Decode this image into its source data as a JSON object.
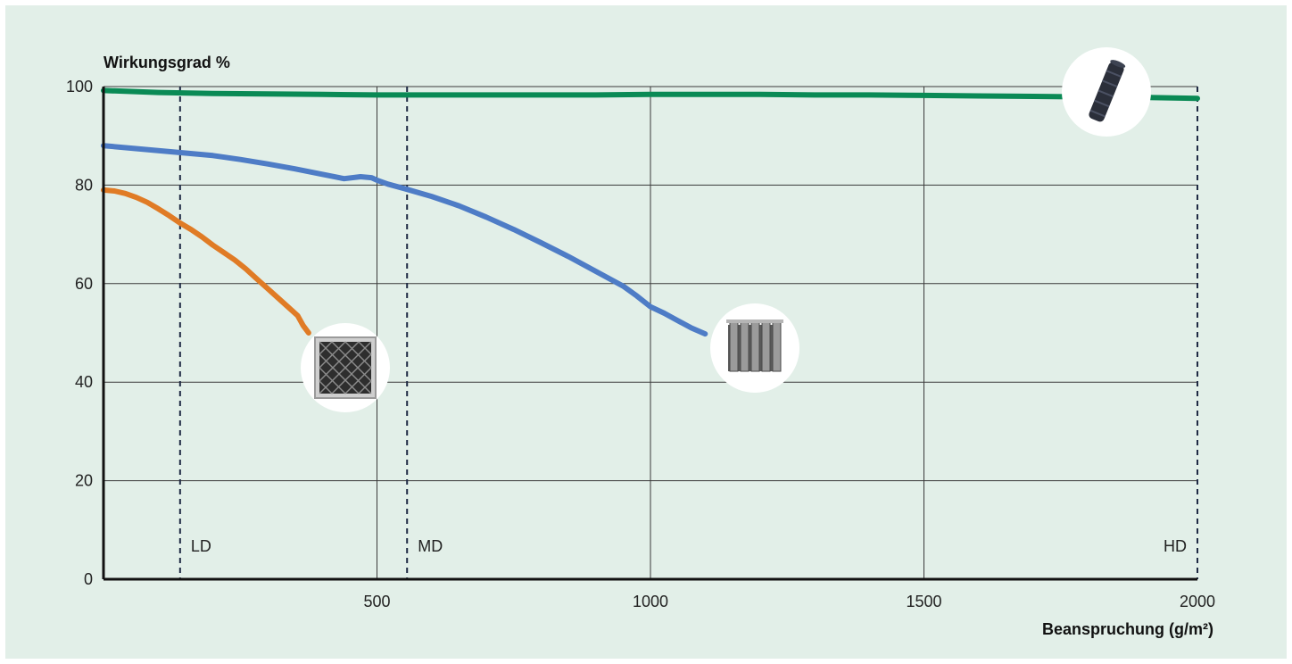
{
  "colors": {
    "background": "#e2efe8",
    "grid": "#3a3a3a",
    "axis": "#111111"
  },
  "chart_data": {
    "type": "line",
    "ylabel": "Wirkungsgrad %",
    "xlabel": "Beanspruchung (g/m²)",
    "xlim": [
      0,
      2000
    ],
    "ylim": [
      0,
      100
    ],
    "x_ticks": [
      "500",
      "1000",
      "1500",
      "2000"
    ],
    "y_ticks": [
      "0",
      "20",
      "40",
      "60",
      "80",
      "100"
    ],
    "grid": true,
    "zones": [
      {
        "label": "LD",
        "x": 140
      },
      {
        "label": "MD",
        "x": 555
      },
      {
        "label": "HD",
        "x": 2000
      }
    ],
    "series": [
      {
        "color": "#e07b25",
        "icon": "panel-filter-icon",
        "points": [
          [
            0,
            79
          ],
          [
            20,
            78.8
          ],
          [
            40,
            78.3
          ],
          [
            60,
            77.5
          ],
          [
            80,
            76.5
          ],
          [
            100,
            75.2
          ],
          [
            120,
            73.8
          ],
          [
            140,
            72.3
          ],
          [
            160,
            71
          ],
          [
            180,
            69.5
          ],
          [
            200,
            67.8
          ],
          [
            220,
            66.3
          ],
          [
            240,
            64.8
          ],
          [
            260,
            63
          ],
          [
            280,
            61
          ],
          [
            300,
            59
          ],
          [
            320,
            57
          ],
          [
            340,
            55
          ],
          [
            355,
            53.5
          ],
          [
            365,
            51.5
          ],
          [
            375,
            50
          ]
        ]
      },
      {
        "color": "#4e7cc6",
        "icon": "bag-filter-icon",
        "points": [
          [
            0,
            88
          ],
          [
            50,
            87.5
          ],
          [
            100,
            87
          ],
          [
            150,
            86.5
          ],
          [
            200,
            86
          ],
          [
            250,
            85.2
          ],
          [
            300,
            84.3
          ],
          [
            350,
            83.3
          ],
          [
            400,
            82.2
          ],
          [
            440,
            81.3
          ],
          [
            470,
            81.7
          ],
          [
            490,
            81.5
          ],
          [
            500,
            81
          ],
          [
            520,
            80.2
          ],
          [
            550,
            79.3
          ],
          [
            600,
            77.7
          ],
          [
            650,
            75.8
          ],
          [
            700,
            73.5
          ],
          [
            750,
            71
          ],
          [
            800,
            68.3
          ],
          [
            850,
            65.5
          ],
          [
            900,
            62.5
          ],
          [
            950,
            59.5
          ],
          [
            975,
            57.5
          ],
          [
            1000,
            55.3
          ],
          [
            1025,
            54
          ],
          [
            1050,
            52.5
          ],
          [
            1075,
            51
          ],
          [
            1100,
            49.8
          ]
        ]
      },
      {
        "color": "#0a8a55",
        "icon": "cartridge-filter-icon",
        "points": [
          [
            0,
            99.2
          ],
          [
            100,
            98.8
          ],
          [
            200,
            98.6
          ],
          [
            300,
            98.5
          ],
          [
            400,
            98.4
          ],
          [
            500,
            98.3
          ],
          [
            600,
            98.3
          ],
          [
            700,
            98.3
          ],
          [
            800,
            98.3
          ],
          [
            900,
            98.3
          ],
          [
            1000,
            98.4
          ],
          [
            1100,
            98.4
          ],
          [
            1200,
            98.4
          ],
          [
            1300,
            98.3
          ],
          [
            1400,
            98.3
          ],
          [
            1500,
            98.2
          ],
          [
            1600,
            98.1
          ],
          [
            1700,
            98
          ],
          [
            1800,
            97.9
          ],
          [
            1900,
            97.8
          ],
          [
            2000,
            97.6
          ]
        ]
      }
    ]
  }
}
